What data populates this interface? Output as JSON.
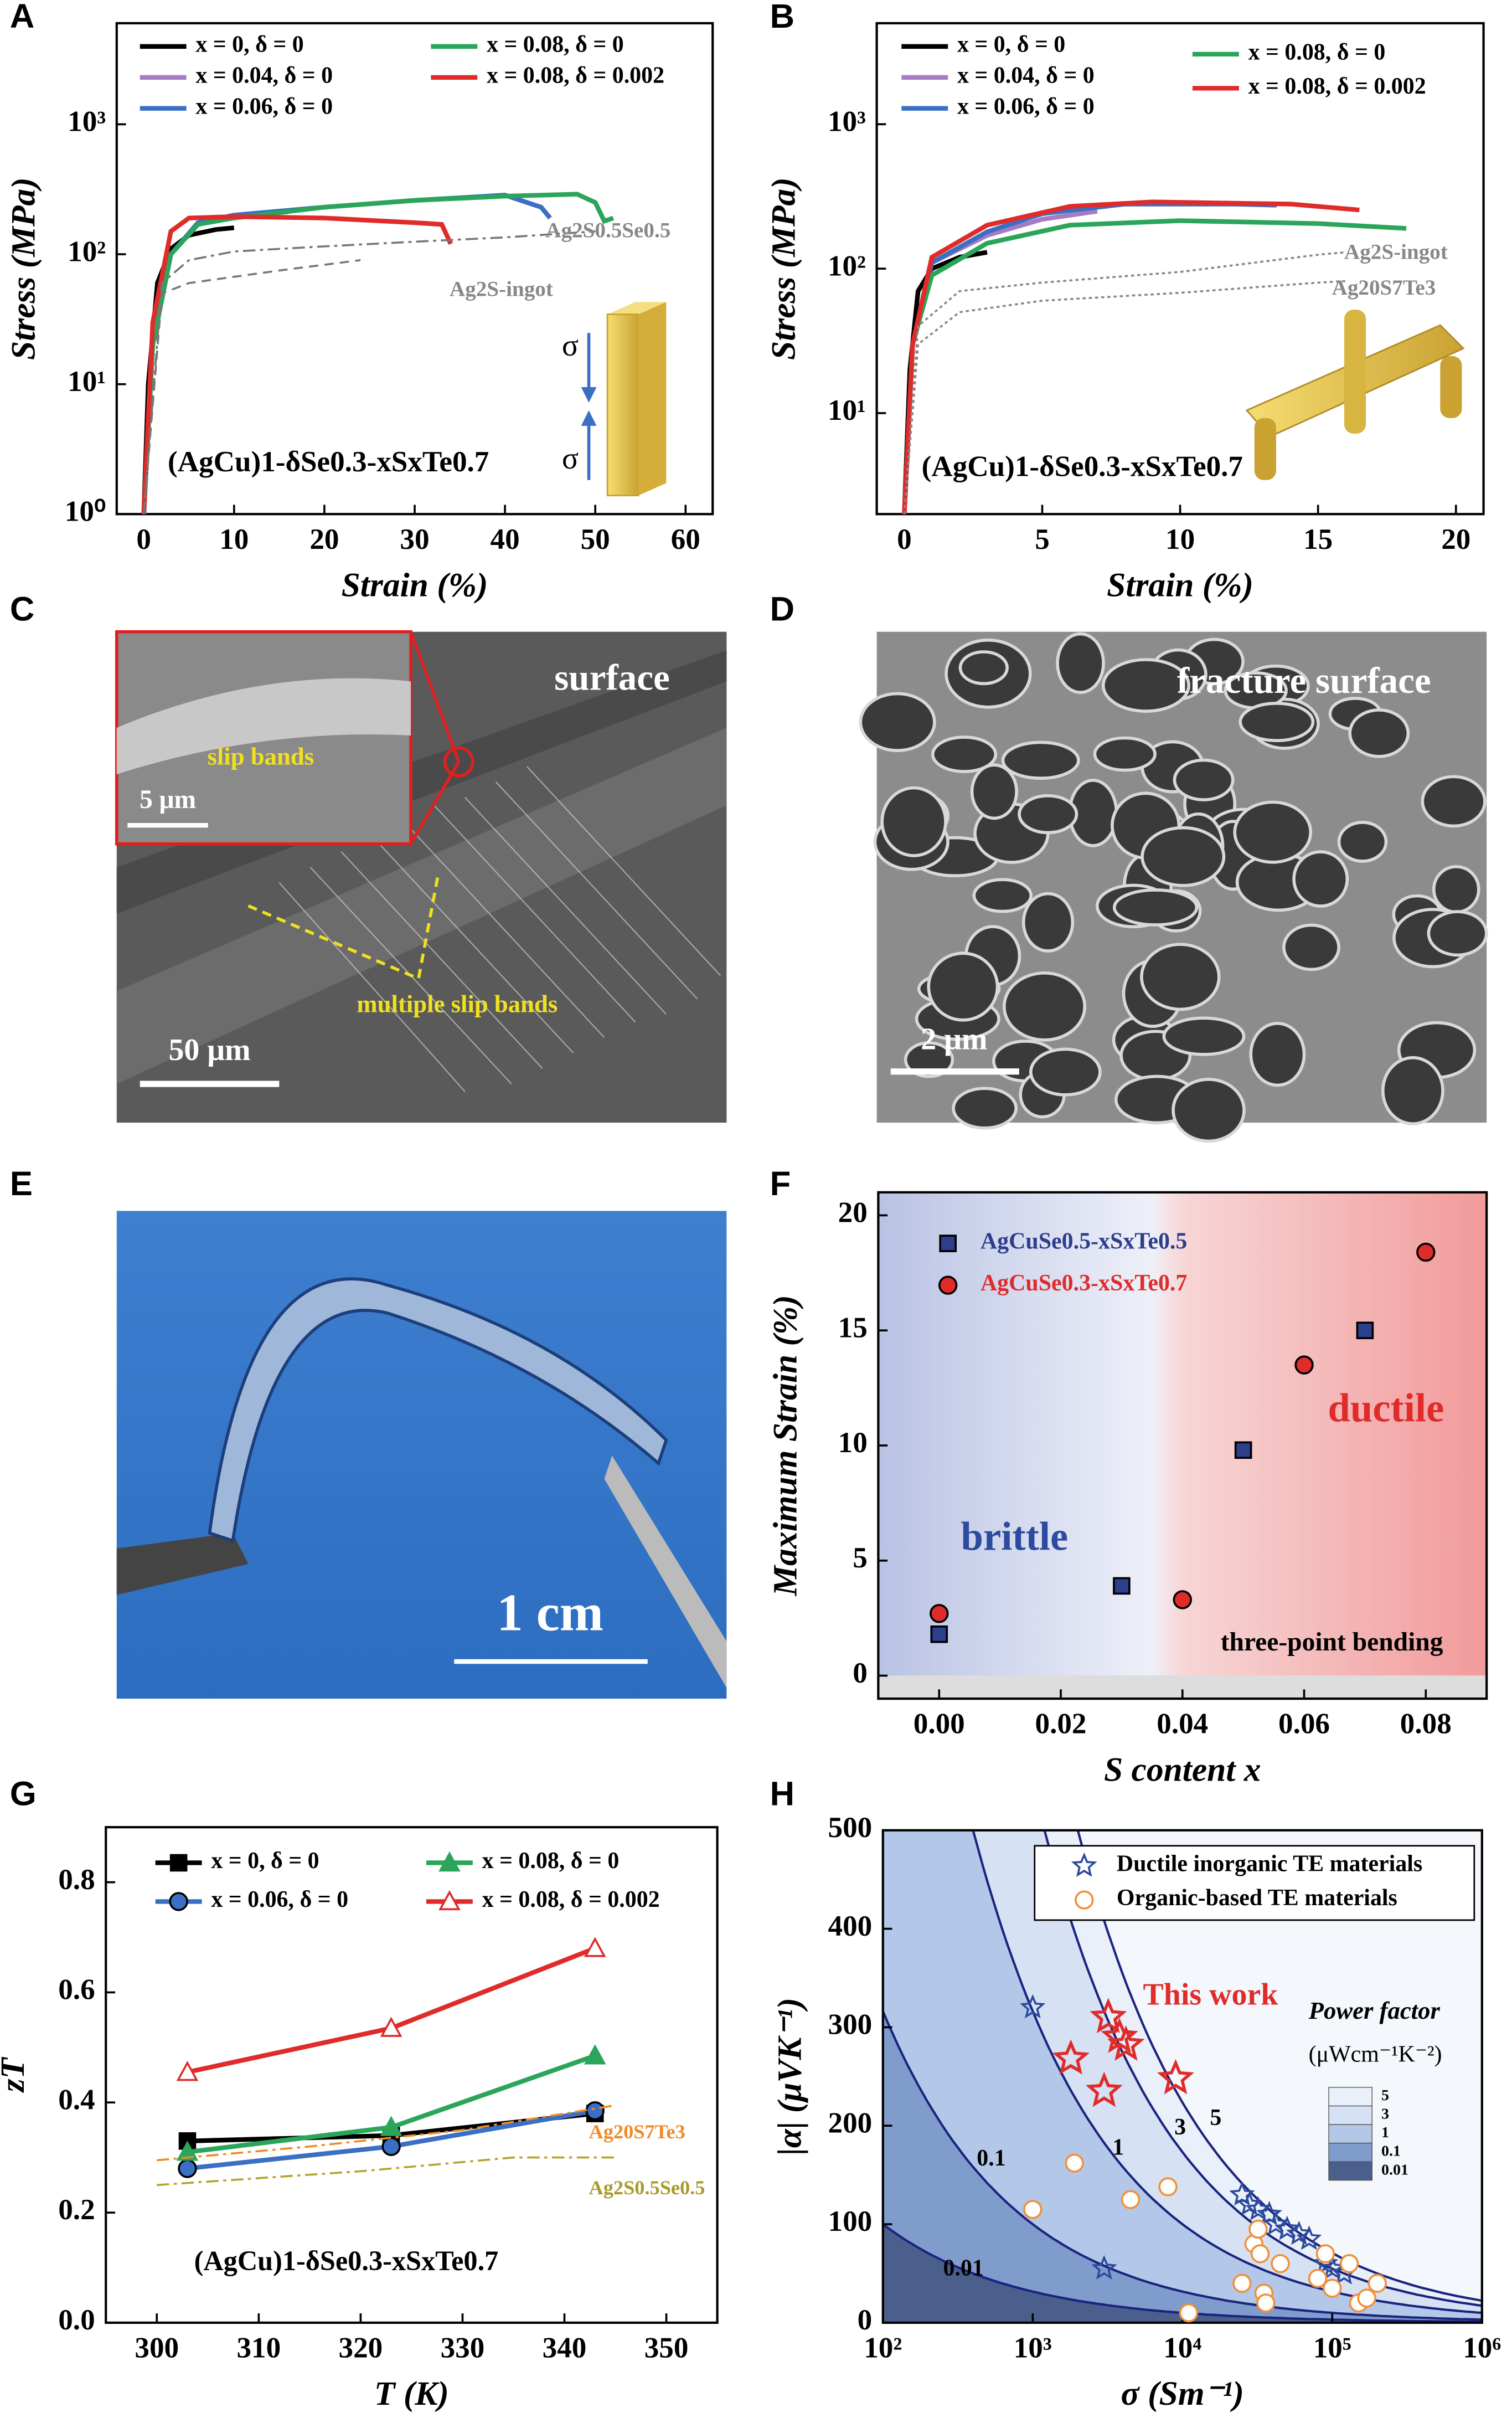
{
  "chart_data": [
    {
      "panel": "A",
      "type": "line",
      "ylog": true,
      "xlabel": "Strain (%)",
      "ylabel": "Stress (MPa)",
      "xlim": [
        -3,
        63
      ],
      "ylim": [
        1,
        6000
      ],
      "xticks": [
        0,
        10,
        20,
        30,
        40,
        50,
        60
      ],
      "yticks": [
        {
          "value": 1,
          "label": "10⁰"
        },
        {
          "value": 10,
          "label": "10¹"
        },
        {
          "value": 100,
          "label": "10²"
        },
        {
          "value": 1000,
          "label": "10³"
        }
      ],
      "series": [
        {
          "name": "x = 0, δ = 0",
          "color": "#000000",
          "x": [
            0,
            0.5,
            1.5,
            3,
            5,
            8,
            10
          ],
          "values": [
            1,
            10,
            60,
            110,
            140,
            155,
            160
          ]
        },
        {
          "name": "x = 0.04, δ = 0",
          "color": "#a57bc4",
          "x": [
            0,
            1,
            3,
            6,
            10,
            16
          ],
          "values": [
            1,
            20,
            100,
            170,
            195,
            212
          ]
        },
        {
          "name": "x = 0.06, δ = 0",
          "color": "#3a6fc4",
          "x": [
            0,
            1,
            3,
            6,
            10,
            20,
            30,
            40,
            44,
            45
          ],
          "values": [
            1,
            20,
            100,
            175,
            200,
            230,
            260,
            285,
            230,
            190
          ]
        },
        {
          "name": "x = 0.08, δ = 0",
          "color": "#2aa55a",
          "x": [
            0,
            1,
            3,
            6,
            10,
            20,
            30,
            40,
            48,
            50,
            51,
            52
          ],
          "values": [
            1,
            20,
            100,
            170,
            190,
            230,
            260,
            280,
            290,
            250,
            180,
            190
          ]
        },
        {
          "name": "x = 0.08, δ = 0.002",
          "color": "#e02b2b",
          "x": [
            0,
            1,
            3,
            5,
            10,
            20,
            30,
            33,
            34
          ],
          "values": [
            1,
            30,
            150,
            190,
            195,
            190,
            175,
            170,
            120
          ]
        },
        {
          "color": "#777777",
          "dash": "dashdot",
          "x": [
            0,
            2,
            5,
            10,
            20,
            30,
            40,
            50
          ],
          "values": [
            1,
            60,
            90,
            105,
            115,
            125,
            135,
            150
          ]
        },
        {
          "color": "#777777",
          "dash": "dashed",
          "x": [
            0,
            2,
            5,
            15,
            24
          ],
          "values": [
            1,
            50,
            60,
            75,
            90
          ]
        }
      ],
      "annotations": [
        "Ag2S0.5Se0.5",
        "Ag2S-ingot",
        "(AgCu)1-δSe0.3-xSxTe0.7",
        "σ",
        "σ"
      ]
    },
    {
      "panel": "B",
      "type": "line",
      "ylog": true,
      "xlabel": "Strain (%)",
      "ylabel": "Stress (MPa)",
      "xlim": [
        -1,
        21
      ],
      "ylim": [
        2,
        5000
      ],
      "xticks": [
        0,
        5,
        10,
        15,
        20
      ],
      "yticks": [
        {
          "value": 10,
          "label": "10¹"
        },
        {
          "value": 100,
          "label": "10²"
        },
        {
          "value": 1000,
          "label": "10³"
        }
      ],
      "series": [
        {
          "name": "x = 0, δ = 0",
          "color": "#000000",
          "x": [
            0,
            0.2,
            0.5,
            1,
            2,
            3
          ],
          "values": [
            2,
            20,
            70,
            100,
            120,
            130
          ]
        },
        {
          "name": "x = 0.04, δ = 0",
          "color": "#a57bc4",
          "x": [
            0,
            0.3,
            1,
            3,
            5,
            7
          ],
          "values": [
            2,
            30,
            110,
            170,
            220,
            250
          ]
        },
        {
          "name": "x = 0.06, δ = 0",
          "color": "#3a6fc4",
          "x": [
            0,
            0.3,
            1,
            3,
            5,
            8,
            12,
            13.5
          ],
          "values": [
            2,
            30,
            110,
            180,
            240,
            280,
            280,
            275
          ]
        },
        {
          "name": "x = 0.08, δ = 0",
          "color": "#2aa55a",
          "x": [
            0,
            0.3,
            1,
            3,
            6,
            10,
            15,
            18.2
          ],
          "values": [
            2,
            30,
            90,
            150,
            200,
            215,
            205,
            190
          ]
        },
        {
          "name": "x = 0.08, δ = 0.002",
          "color": "#e02b2b",
          "x": [
            0,
            0.3,
            1,
            3,
            6,
            9,
            14,
            16.5
          ],
          "values": [
            2,
            30,
            120,
            200,
            270,
            290,
            280,
            255
          ]
        },
        {
          "color": "#888888",
          "dash": "dotted",
          "x": [
            0,
            0.5,
            2,
            5,
            10,
            15,
            16
          ],
          "values": [
            2,
            40,
            70,
            80,
            95,
            125,
            130
          ]
        },
        {
          "color": "#888888",
          "dash": "dotted",
          "x": [
            0,
            0.5,
            2,
            5,
            10,
            15,
            16
          ],
          "values": [
            2,
            30,
            50,
            60,
            68,
            80,
            82
          ]
        }
      ],
      "annotations": [
        "Ag2S-ingot",
        "Ag20S7Te3",
        "(AgCu)1-δSe0.3-xSxTe0.7"
      ]
    },
    {
      "panel": "F",
      "type": "scatter",
      "xlabel": "S content x",
      "ylabel": "Maximum Strain (%)",
      "xlim": [
        -0.01,
        0.09
      ],
      "ylim": [
        -1,
        21
      ],
      "xticks": [
        {
          "value": 0,
          "label": "0.00"
        },
        {
          "value": 0.02,
          "label": "0.02"
        },
        {
          "value": 0.04,
          "label": "0.04"
        },
        {
          "value": 0.06,
          "label": "0.06"
        },
        {
          "value": 0.08,
          "label": "0.08"
        }
      ],
      "yticks": [
        0,
        5,
        10,
        15,
        20
      ],
      "series": [
        {
          "name": "AgCuSe0.5-xSxTe0.5",
          "color": "#2c3e8c",
          "marker": "square",
          "x": [
            0,
            0.03,
            0.05,
            0.07
          ],
          "values": [
            1.8,
            3.9,
            9.8,
            15
          ]
        },
        {
          "name": "AgCuSe0.3-xSxTe0.7",
          "color": "#e02b2b",
          "marker": "circle",
          "x": [
            0,
            0.04,
            0.06,
            0.08
          ],
          "values": [
            2.7,
            3.3,
            13.5,
            18.4
          ]
        }
      ],
      "annotations": [
        "brittle",
        "ductile",
        "three-point bending"
      ]
    },
    {
      "panel": "G",
      "type": "line",
      "xlabel": "T (K)",
      "ylabel": "zT",
      "xlim": [
        295,
        355
      ],
      "ylim": [
        0,
        0.9
      ],
      "xticks": [
        300,
        310,
        320,
        330,
        340,
        350
      ],
      "yticks": [
        {
          "value": 0,
          "label": "0.0"
        },
        {
          "value": 0.2,
          "label": "0.2"
        },
        {
          "value": 0.4,
          "label": "0.4"
        },
        {
          "value": 0.6,
          "label": "0.6"
        },
        {
          "value": 0.8,
          "label": "0.8"
        }
      ],
      "series": [
        {
          "name": "x = 0, δ = 0",
          "color": "#000000",
          "marker": "square",
          "x": [
            303,
            323,
            343
          ],
          "values": [
            0.33,
            0.34,
            0.38
          ]
        },
        {
          "name": "x = 0.06, δ = 0",
          "color": "#3a6fc4",
          "marker": "circle",
          "x": [
            303,
            323,
            343
          ],
          "values": [
            0.28,
            0.32,
            0.385
          ]
        },
        {
          "name": "x = 0.08, δ = 0",
          "color": "#2aa55a",
          "marker": "triangle",
          "x": [
            303,
            323,
            343
          ],
          "values": [
            0.31,
            0.355,
            0.485
          ]
        },
        {
          "name": "x = 0.08, δ = 0.002",
          "color": "#e02b2b",
          "marker": "halftriangle",
          "x": [
            303,
            323,
            343
          ],
          "values": [
            0.455,
            0.535,
            0.68
          ]
        },
        {
          "color": "#f08a24",
          "dash": "dashdot",
          "x": [
            300,
            315,
            330,
            345
          ],
          "values": [
            0.295,
            0.32,
            0.35,
            0.395
          ]
        },
        {
          "color": "#b5a32e",
          "dash": "dashdot",
          "x": [
            300,
            320,
            335,
            345
          ],
          "values": [
            0.25,
            0.275,
            0.3,
            0.3
          ]
        }
      ],
      "annotations": [
        "Ag20S7Te3",
        "Ag2S0.5Se0.5",
        "(AgCu)1-δSe0.3-xSxTe0.7"
      ]
    },
    {
      "panel": "H",
      "type": "scatter",
      "xlog": true,
      "xlabel": "σ (Sm⁻¹)",
      "ylabel": "|α| (μVK⁻¹)",
      "xlim": [
        100,
        1000000
      ],
      "ylim": [
        0,
        500
      ],
      "xticks": [
        {
          "value": 100,
          "label": "10²"
        },
        {
          "value": 1000,
          "label": "10³"
        },
        {
          "value": 10000,
          "label": "10⁴"
        },
        {
          "value": 100000,
          "label": "10⁵"
        },
        {
          "value": 1000000,
          "label": "10⁶"
        }
      ],
      "yticks": [
        0,
        100,
        200,
        300,
        400,
        500
      ],
      "contours": [
        0.01,
        0.1,
        1,
        3,
        5
      ],
      "contour_colors": [
        "#4a5f8c",
        "#7f9ccc",
        "#b3c8e8",
        "#d6e2f4",
        "#e9f0fa"
      ],
      "series": [
        {
          "name": "Ductile inorganic TE materials",
          "color": "#2c4a9c",
          "marker": "star",
          "x": [
            1000,
            3000,
            25000,
            28000,
            32000,
            38000,
            42000,
            50000,
            60000,
            70000,
            90000,
            100000,
            120000
          ],
          "values": [
            320,
            55,
            130,
            120,
            115,
            110,
            100,
            95,
            90,
            85,
            60,
            55,
            50
          ]
        },
        {
          "name": "Organic-based TE materials",
          "color": "#f0903a",
          "marker": "ring",
          "x": [
            1000,
            1900,
            4500,
            8000,
            11000,
            25000,
            30000,
            32000,
            33000,
            35000,
            36000,
            45000,
            80000,
            90000,
            100000,
            130000,
            150000,
            170000,
            200000
          ],
          "values": [
            115,
            162,
            125,
            138,
            10,
            40,
            80,
            95,
            70,
            30,
            20,
            60,
            45,
            70,
            35,
            60,
            20,
            25,
            40
          ]
        },
        {
          "color": "#e02b2b",
          "marker": "bigstar",
          "x": [
            1800,
            3000,
            3200,
            3800,
            4200,
            9000
          ],
          "values": [
            268,
            235,
            310,
            290,
            282,
            248
          ]
        }
      ],
      "annotations": [
        "This work",
        "Power factor",
        "(μWcm⁻¹K⁻²)"
      ]
    }
  ],
  "images": [
    {
      "panel": "C",
      "labels": [
        "surface",
        "slip bands",
        "5 μm",
        "multiple slip bands",
        "50 μm"
      ]
    },
    {
      "panel": "D",
      "labels": [
        "fracture surface",
        "2 μm"
      ]
    },
    {
      "panel": "E",
      "labels": [
        "1 cm"
      ]
    }
  ]
}
